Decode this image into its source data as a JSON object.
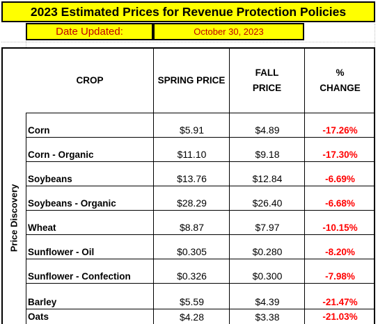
{
  "title": "2023 Estimated Prices for Revenue Protection Policies",
  "date": {
    "label": "Date Updated:",
    "value": "October 30, 2023"
  },
  "side_label": "Price Discovery",
  "headers": {
    "crop": "CROP",
    "spring": "SPRING PRICE",
    "fall_line1": "FALL",
    "fall_line2": "PRICE",
    "change_line1": "%",
    "change_line2": "CHANGE"
  },
  "rows": [
    {
      "crop": "Corn",
      "spring": "$5.91",
      "fall": "$4.89",
      "change": "-17.26%"
    },
    {
      "crop": "Corn - Organic",
      "spring": "$11.10",
      "fall": "$9.18",
      "change": "-17.30%"
    },
    {
      "crop": "Soybeans",
      "spring": "$13.76",
      "fall": "$12.84",
      "change": "-6.69%"
    },
    {
      "crop": "Soybeans - Organic",
      "spring": "$28.29",
      "fall": "$26.40",
      "change": "-6.68%"
    },
    {
      "crop": "Wheat",
      "spring": "$8.87",
      "fall": "$7.97",
      "change": "-10.15%"
    },
    {
      "crop": "Sunflower - Oil",
      "spring": "$0.305",
      "fall": "$0.280",
      "change": "-8.20%"
    },
    {
      "crop": "Sunflower - Confection",
      "spring": "$0.326",
      "fall": "$0.300",
      "change": "-7.98%"
    },
    {
      "crop": "Barley",
      "spring": "$5.59",
      "fall": "$4.39",
      "change": "-21.47%"
    },
    {
      "crop": "Oats",
      "spring": "$4.28",
      "fall": "$3.38",
      "change": "-21.03%"
    }
  ],
  "colors": {
    "highlight": "#ffff00",
    "date_text": "#c00000",
    "negative_change": "#ff0000"
  }
}
